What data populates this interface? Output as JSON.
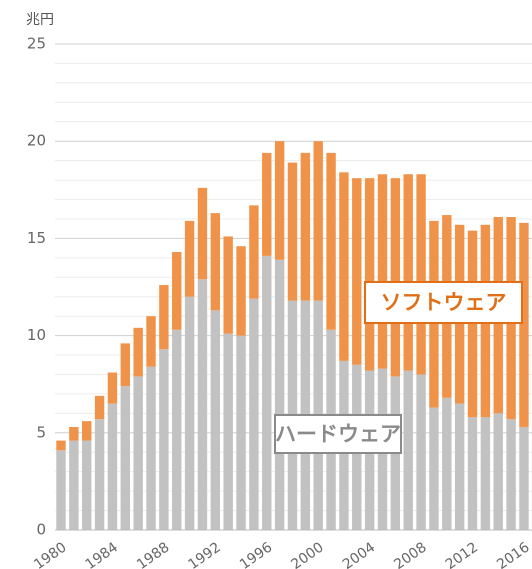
{
  "chart_data": {
    "type": "stacked_bar",
    "y_unit": "兆円",
    "categories": [
      "1980",
      null,
      null,
      null,
      "1984",
      null,
      null,
      null,
      "1988",
      null,
      null,
      null,
      "1992",
      null,
      null,
      null,
      "1996",
      null,
      null,
      null,
      "2000",
      null,
      null,
      null,
      "2004",
      null,
      null,
      null,
      "2008",
      null,
      null,
      null,
      "2012",
      null,
      null,
      null,
      "2016",
      null
    ],
    "series": [
      {
        "name": "ハードウェア",
        "color": "#c2c2c2",
        "label_color": "#8a8a8a",
        "values": [
          4.1,
          4.6,
          4.6,
          5.7,
          6.5,
          7.4,
          7.9,
          8.4,
          9.3,
          10.3,
          12.0,
          12.9,
          11.3,
          10.1,
          10.0,
          11.9,
          14.1,
          13.9,
          11.8,
          11.8,
          11.8,
          10.3,
          8.7,
          8.5,
          8.2,
          8.3,
          7.9,
          8.2,
          8.0,
          6.3,
          6.8,
          6.5,
          5.8,
          5.8,
          6.0,
          5.7,
          5.3,
          5.2
        ]
      },
      {
        "name": "ソフトウェア",
        "color": "#f0934a",
        "label_color": "#e26e17",
        "values": [
          0.5,
          0.7,
          1.0,
          1.2,
          1.6,
          2.2,
          2.5,
          2.6,
          3.3,
          4.0,
          3.9,
          4.7,
          5.0,
          5.0,
          4.6,
          4.8,
          5.3,
          6.1,
          7.1,
          7.6,
          8.2,
          9.1,
          9.7,
          9.6,
          9.9,
          10.0,
          10.2,
          10.1,
          10.3,
          9.6,
          9.4,
          9.2,
          9.6,
          9.9,
          10.1,
          10.4,
          10.5,
          10.9
        ]
      }
    ],
    "ylim": [
      0,
      25
    ],
    "yticks": [
      0,
      5,
      10,
      15,
      20,
      25
    ],
    "minor_yticks": [
      1,
      2,
      3,
      4,
      6,
      7,
      8,
      9,
      11,
      12,
      13,
      14,
      16,
      17,
      18,
      19,
      21,
      22,
      23,
      24
    ],
    "grid": true
  }
}
